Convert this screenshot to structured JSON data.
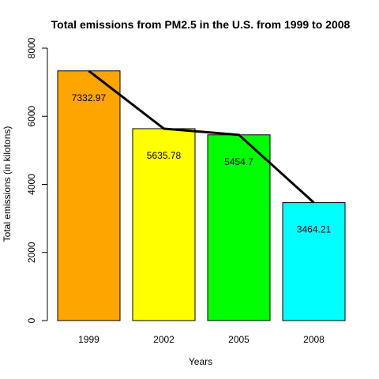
{
  "chart_data": {
    "type": "bar",
    "title": "Total emissions from PM2.5 in the U.S. from 1999 to 2008",
    "xlabel": "Years",
    "ylabel": "Total emissions (in kilotons)",
    "categories": [
      "1999",
      "2002",
      "2005",
      "2008"
    ],
    "values": [
      7332.97,
      5635.78,
      5454.7,
      3464.21
    ],
    "value_labels": [
      "7332.97",
      "5635.78",
      "5454.7",
      "3464.21"
    ],
    "colors": [
      "#ffa500",
      "#ffff00",
      "#00ff00",
      "#00ffff"
    ],
    "ylim": [
      0,
      8000
    ],
    "yticks": [
      0,
      2000,
      4000,
      6000,
      8000
    ],
    "ytick_labels": [
      "0",
      "2000",
      "4000",
      "6000",
      "8000"
    ],
    "trend_line": true,
    "grid": false,
    "legend": "none"
  }
}
